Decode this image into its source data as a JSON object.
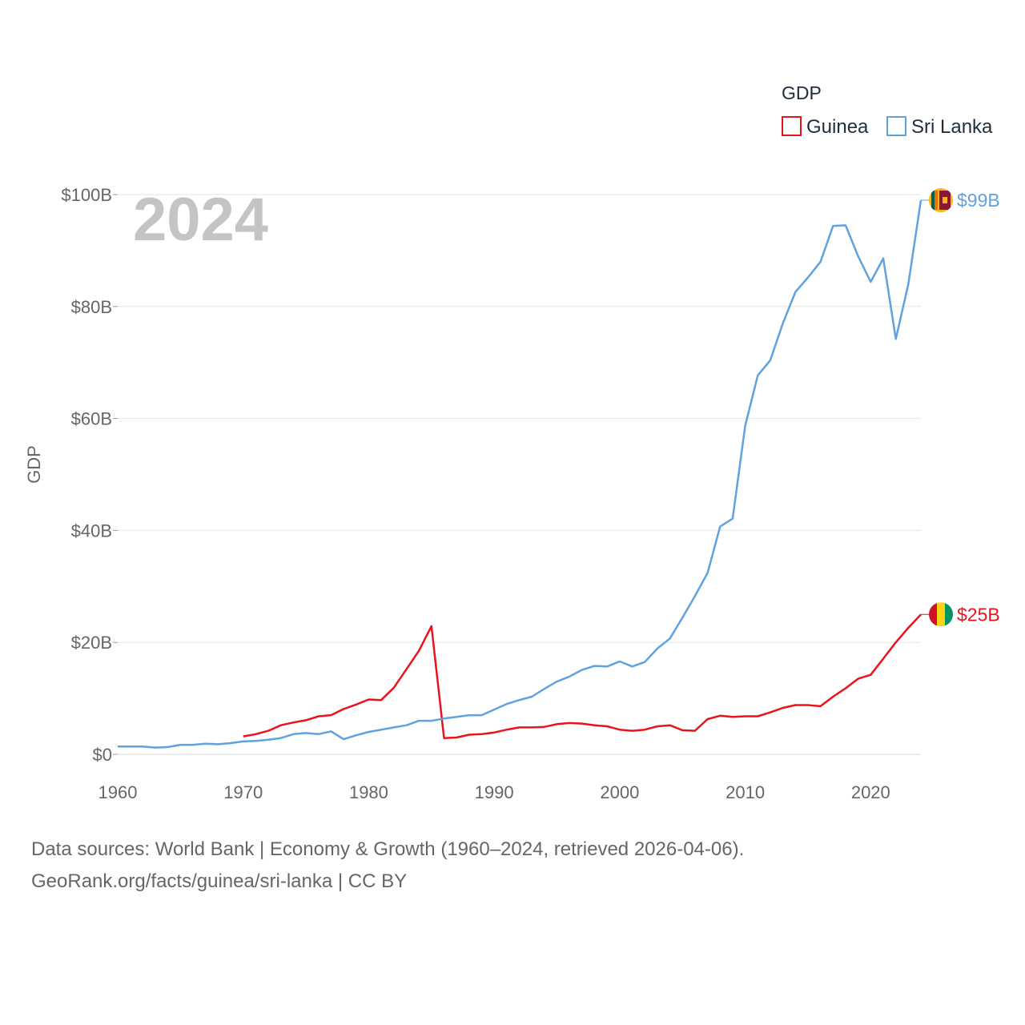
{
  "chart_data": {
    "type": "line",
    "ylabel": "GDP",
    "xlim": [
      1960,
      2024
    ],
    "ylim": [
      0,
      100
    ],
    "year_label": "2024",
    "x_ticks": [
      1960,
      1970,
      1980,
      1990,
      2000,
      2010,
      2020
    ],
    "y_ticks": [
      {
        "value": 0,
        "label": "$0"
      },
      {
        "value": 20,
        "label": "$20B"
      },
      {
        "value": 40,
        "label": "$40B"
      },
      {
        "value": 60,
        "label": "$60B"
      },
      {
        "value": 80,
        "label": "$80B"
      },
      {
        "value": 100,
        "label": "$100B"
      }
    ],
    "legend": {
      "title": "GDP",
      "position": "top-right"
    },
    "series": [
      {
        "name": "Guinea",
        "color": "#e8141c",
        "end_label": "$25B",
        "flag": "guinea-flag",
        "x": [
          1970,
          1971,
          1972,
          1973,
          1974,
          1975,
          1976,
          1977,
          1978,
          1979,
          1980,
          1981,
          1982,
          1983,
          1984,
          1985,
          1986,
          1987,
          1988,
          1989,
          1990,
          1991,
          1992,
          1993,
          1994,
          1995,
          1996,
          1997,
          1998,
          1999,
          2000,
          2001,
          2002,
          2003,
          2004,
          2005,
          2006,
          2007,
          2008,
          2009,
          2010,
          2011,
          2012,
          2013,
          2014,
          2015,
          2016,
          2017,
          2018,
          2019,
          2020,
          2021,
          2022,
          2023,
          2024
        ],
        "values": [
          3.2,
          3.6,
          4.2,
          5.2,
          5.7,
          6.1,
          6.8,
          7.0,
          8.1,
          8.9,
          9.8,
          9.7,
          11.9,
          15.2,
          18.5,
          22.9,
          2.9,
          3.0,
          3.5,
          3.6,
          3.9,
          4.4,
          4.8,
          4.8,
          4.9,
          5.4,
          5.6,
          5.5,
          5.2,
          5.0,
          4.4,
          4.2,
          4.4,
          5.0,
          5.2,
          4.3,
          4.2,
          6.3,
          6.9,
          6.7,
          6.8,
          6.8,
          7.5,
          8.3,
          8.8,
          8.8,
          8.6,
          10.3,
          11.8,
          13.5,
          14.2,
          17.1,
          20.0,
          22.6,
          25.0
        ]
      },
      {
        "name": "Sri Lanka",
        "color": "#5fa2e0",
        "end_label": "$99B",
        "flag": "sri-lanka-flag",
        "x": [
          1960,
          1961,
          1962,
          1963,
          1964,
          1965,
          1966,
          1967,
          1968,
          1969,
          1970,
          1971,
          1972,
          1973,
          1974,
          1975,
          1976,
          1977,
          1978,
          1979,
          1980,
          1981,
          1982,
          1983,
          1984,
          1985,
          1986,
          1987,
          1988,
          1989,
          1990,
          1991,
          1992,
          1993,
          1994,
          1995,
          1996,
          1997,
          1998,
          1999,
          2000,
          2001,
          2002,
          2003,
          2004,
          2005,
          2006,
          2007,
          2008,
          2009,
          2010,
          2011,
          2012,
          2013,
          2014,
          2015,
          2016,
          2017,
          2018,
          2019,
          2020,
          2021,
          2022,
          2023,
          2024
        ],
        "values": [
          1.4,
          1.4,
          1.4,
          1.2,
          1.3,
          1.7,
          1.7,
          1.9,
          1.8,
          2.0,
          2.3,
          2.4,
          2.6,
          2.9,
          3.6,
          3.8,
          3.6,
          4.1,
          2.7,
          3.4,
          4.0,
          4.4,
          4.8,
          5.2,
          6.0,
          6.0,
          6.4,
          6.7,
          7.0,
          7.0,
          8.0,
          9.0,
          9.7,
          10.3,
          11.7,
          13.0,
          13.9,
          15.1,
          15.8,
          15.7,
          16.6,
          15.7,
          16.5,
          18.9,
          20.7,
          24.4,
          28.3,
          32.4,
          40.7,
          42.1,
          58.7,
          67.7,
          70.4,
          77.0,
          82.6,
          85.2,
          88.0,
          94.4,
          94.5,
          89.0,
          84.4,
          88.6,
          74.2,
          84.0,
          99.0
        ]
      }
    ]
  },
  "footer": {
    "line1": "Data sources: World Bank | Economy & Growth (1960–2024, retrieved 2026-04-06).",
    "line2": "GeoRank.org/facts/guinea/sri-lanka | CC BY"
  }
}
